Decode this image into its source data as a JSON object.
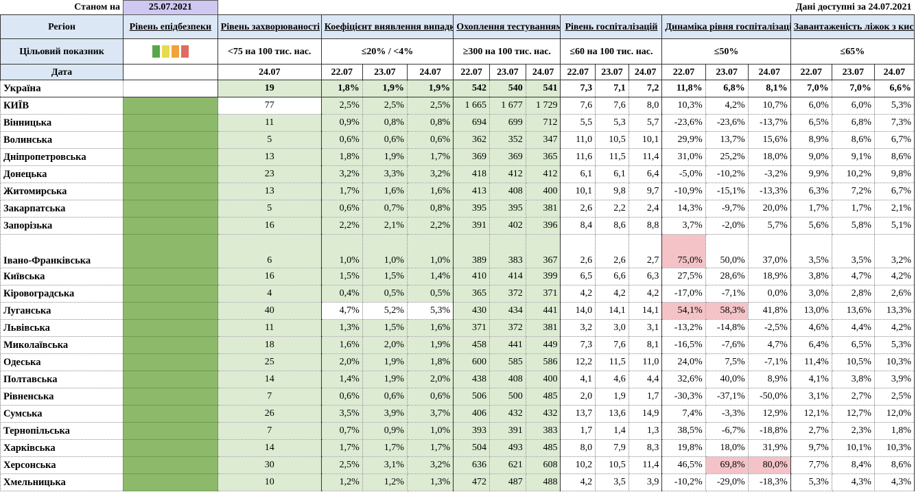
{
  "header": {
    "as_of_label": "Станом на",
    "as_of_date": "25.07.2021",
    "available_label": "Дані доступні за 24.07.2021"
  },
  "columns": {
    "region": "Регіон",
    "epi_level": "Рівень епідбезпеки",
    "incidence": "Рівень захворюваності",
    "detection": "Коефіцієнт виявлення випадків інфікування",
    "testing": "Охоплення тестуванням",
    "hospitalization": "Рівень госпіталізацій",
    "hosp_dynamics": "Динаміка рівня госпіталізацій",
    "oxygen_beds": "Завантаженість ліжок з киснем"
  },
  "target": {
    "label": "Цільовий показник",
    "incidence": "<75 на 100 тис. нас.",
    "detection": "≤20% / <4%",
    "testing": "≥300 на 100 тис. нас.",
    "hospitalization": "≤60 на 100 тис. нас.",
    "hosp_dynamics": "≤50%",
    "oxygen_beds": "≤65%",
    "squares": [
      "#5aa64b",
      "#e6db4f",
      "#f1a23a",
      "#e06a64"
    ]
  },
  "date_row": {
    "label": "Дата",
    "incidence": "24.07",
    "d1": "22.07",
    "d2": "23.07",
    "d3": "24.07"
  },
  "rows": [
    {
      "region": "Україна",
      "inc": "19",
      "det": [
        "1,8%",
        "1,9%",
        "1,9%"
      ],
      "test": [
        "542",
        "540",
        "541"
      ],
      "hosp": [
        "7,3",
        "7,1",
        "7,2"
      ],
      "dyn": [
        "11,8%",
        "6,8%",
        "8,1%"
      ],
      "oxy": [
        "7,0%",
        "7,0%",
        "6,6%"
      ]
    },
    {
      "region": "КИЇВ",
      "inc": "77",
      "det": [
        "2,5%",
        "2,5%",
        "2,5%"
      ],
      "test": [
        "1 665",
        "1 677",
        "1 729"
      ],
      "hosp": [
        "7,6",
        "7,6",
        "8,0"
      ],
      "dyn": [
        "10,3%",
        "4,2%",
        "10,7%"
      ],
      "oxy": [
        "6,0%",
        "6,0%",
        "5,3%"
      ]
    },
    {
      "region": "Вінницька",
      "inc": "11",
      "det": [
        "0,9%",
        "0,8%",
        "0,8%"
      ],
      "test": [
        "694",
        "699",
        "712"
      ],
      "hosp": [
        "5,5",
        "5,3",
        "5,7"
      ],
      "dyn": [
        "-23,6%",
        "-23,6%",
        "-13,7%"
      ],
      "oxy": [
        "6,5%",
        "6,8%",
        "7,3%"
      ]
    },
    {
      "region": "Волинська",
      "inc": "5",
      "det": [
        "0,6%",
        "0,6%",
        "0,6%"
      ],
      "test": [
        "362",
        "352",
        "347"
      ],
      "hosp": [
        "11,0",
        "10,5",
        "10,1"
      ],
      "dyn": [
        "29,9%",
        "13,7%",
        "15,6%"
      ],
      "oxy": [
        "8,9%",
        "8,6%",
        "6,7%"
      ]
    },
    {
      "region": "Дніпропетровська",
      "inc": "13",
      "det": [
        "1,8%",
        "1,9%",
        "1,7%"
      ],
      "test": [
        "369",
        "369",
        "365"
      ],
      "hosp": [
        "11,6",
        "11,5",
        "11,4"
      ],
      "dyn": [
        "31,0%",
        "25,2%",
        "18,0%"
      ],
      "oxy": [
        "9,0%",
        "9,1%",
        "8,6%"
      ]
    },
    {
      "region": "Донецька",
      "inc": "23",
      "det": [
        "3,2%",
        "3,3%",
        "3,2%"
      ],
      "test": [
        "418",
        "412",
        "412"
      ],
      "hosp": [
        "6,1",
        "6,1",
        "6,4"
      ],
      "dyn": [
        "-5,0%",
        "-10,2%",
        "-3,2%"
      ],
      "oxy": [
        "9,9%",
        "10,2%",
        "9,8%"
      ]
    },
    {
      "region": "Житомирська",
      "inc": "13",
      "det": [
        "1,7%",
        "1,6%",
        "1,6%"
      ],
      "test": [
        "413",
        "408",
        "400"
      ],
      "hosp": [
        "10,1",
        "9,8",
        "9,7"
      ],
      "dyn": [
        "-10,9%",
        "-15,1%",
        "-13,3%"
      ],
      "oxy": [
        "6,3%",
        "7,2%",
        "6,7%"
      ]
    },
    {
      "region": "Закарпатська",
      "inc": "5",
      "det": [
        "0,6%",
        "0,7%",
        "0,8%"
      ],
      "test": [
        "395",
        "395",
        "381"
      ],
      "hosp": [
        "2,6",
        "2,2",
        "2,4"
      ],
      "dyn": [
        "14,3%",
        "-9,7%",
        "20,0%"
      ],
      "oxy": [
        "1,7%",
        "1,7%",
        "2,1%"
      ]
    },
    {
      "region": "Запорізька",
      "inc": "16",
      "det": [
        "2,2%",
        "2,1%",
        "2,2%"
      ],
      "test": [
        "391",
        "402",
        "396"
      ],
      "hosp": [
        "8,4",
        "8,6",
        "8,8"
      ],
      "dyn": [
        "3,7%",
        "-2,0%",
        "5,7%"
      ],
      "oxy": [
        "5,6%",
        "5,8%",
        "5,1%"
      ]
    },
    {
      "region": "Івано-Франківська",
      "inc": "6",
      "det": [
        "1,0%",
        "1,0%",
        "1,0%"
      ],
      "test": [
        "389",
        "383",
        "367"
      ],
      "hosp": [
        "2,6",
        "2,6",
        "2,7"
      ],
      "dyn": [
        "75,0%",
        "50,0%",
        "37,0%"
      ],
      "oxy": [
        "3,5%",
        "3,5%",
        "3,2%"
      ]
    },
    {
      "region": "Київська",
      "inc": "16",
      "det": [
        "1,5%",
        "1,5%",
        "1,4%"
      ],
      "test": [
        "410",
        "414",
        "399"
      ],
      "hosp": [
        "6,5",
        "6,6",
        "6,3"
      ],
      "dyn": [
        "27,5%",
        "28,6%",
        "18,9%"
      ],
      "oxy": [
        "3,8%",
        "4,7%",
        "4,2%"
      ]
    },
    {
      "region": "Кіровоградська",
      "inc": "4",
      "det": [
        "0,4%",
        "0,5%",
        "0,5%"
      ],
      "test": [
        "365",
        "372",
        "371"
      ],
      "hosp": [
        "4,2",
        "4,2",
        "4,2"
      ],
      "dyn": [
        "-17,0%",
        "-7,1%",
        "0,0%"
      ],
      "oxy": [
        "3,0%",
        "2,8%",
        "2,6%"
      ]
    },
    {
      "region": "Луганська",
      "inc": "40",
      "det": [
        "4,7%",
        "5,2%",
        "5,3%"
      ],
      "test": [
        "430",
        "434",
        "441"
      ],
      "hosp": [
        "14,0",
        "14,1",
        "14,1"
      ],
      "dyn": [
        "54,1%",
        "58,3%",
        "41,8%"
      ],
      "oxy": [
        "13,0%",
        "13,6%",
        "13,3%"
      ]
    },
    {
      "region": "Львівська",
      "inc": "11",
      "det": [
        "1,3%",
        "1,5%",
        "1,6%"
      ],
      "test": [
        "371",
        "372",
        "381"
      ],
      "hosp": [
        "3,2",
        "3,0",
        "3,1"
      ],
      "dyn": [
        "-13,2%",
        "-14,8%",
        "-2,5%"
      ],
      "oxy": [
        "4,6%",
        "4,4%",
        "4,2%"
      ]
    },
    {
      "region": "Миколаївська",
      "inc": "18",
      "det": [
        "1,6%",
        "2,0%",
        "1,9%"
      ],
      "test": [
        "458",
        "441",
        "449"
      ],
      "hosp": [
        "7,3",
        "7,6",
        "8,1"
      ],
      "dyn": [
        "-16,5%",
        "-7,6%",
        "4,7%"
      ],
      "oxy": [
        "6,4%",
        "6,5%",
        "5,3%"
      ]
    },
    {
      "region": "Одеська",
      "inc": "25",
      "det": [
        "2,0%",
        "1,9%",
        "1,8%"
      ],
      "test": [
        "600",
        "585",
        "586"
      ],
      "hosp": [
        "12,2",
        "11,5",
        "11,0"
      ],
      "dyn": [
        "24,0%",
        "7,5%",
        "-7,1%"
      ],
      "oxy": [
        "11,4%",
        "10,5%",
        "10,3%"
      ]
    },
    {
      "region": "Полтавська",
      "inc": "14",
      "det": [
        "1,4%",
        "1,9%",
        "2,0%"
      ],
      "test": [
        "438",
        "408",
        "400"
      ],
      "hosp": [
        "4,1",
        "4,6",
        "4,4"
      ],
      "dyn": [
        "32,6%",
        "40,0%",
        "8,9%"
      ],
      "oxy": [
        "4,1%",
        "3,8%",
        "3,9%"
      ]
    },
    {
      "region": "Рівненська",
      "inc": "7",
      "det": [
        "0,6%",
        "0,6%",
        "0,6%"
      ],
      "test": [
        "506",
        "500",
        "485"
      ],
      "hosp": [
        "2,0",
        "1,9",
        "1,7"
      ],
      "dyn": [
        "-30,3%",
        "-37,1%",
        "-50,0%"
      ],
      "oxy": [
        "3,1%",
        "2,7%",
        "2,5%"
      ]
    },
    {
      "region": "Сумська",
      "inc": "26",
      "det": [
        "3,5%",
        "3,9%",
        "3,7%"
      ],
      "test": [
        "406",
        "432",
        "432"
      ],
      "hosp": [
        "13,7",
        "13,6",
        "14,9"
      ],
      "dyn": [
        "7,4%",
        "-3,3%",
        "12,9%"
      ],
      "oxy": [
        "12,1%",
        "12,7%",
        "12,0%"
      ]
    },
    {
      "region": "Тернопільська",
      "inc": "7",
      "det": [
        "0,7%",
        "0,9%",
        "1,0%"
      ],
      "test": [
        "393",
        "391",
        "383"
      ],
      "hosp": [
        "1,7",
        "1,4",
        "1,3"
      ],
      "dyn": [
        "38,5%",
        "-6,7%",
        "-18,8%"
      ],
      "oxy": [
        "2,7%",
        "2,3%",
        "1,8%"
      ]
    },
    {
      "region": "Харківська",
      "inc": "14",
      "det": [
        "1,7%",
        "1,7%",
        "1,7%"
      ],
      "test": [
        "504",
        "493",
        "485"
      ],
      "hosp": [
        "8,0",
        "7,9",
        "8,3"
      ],
      "dyn": [
        "19,8%",
        "18,0%",
        "31,9%"
      ],
      "oxy": [
        "9,7%",
        "10,1%",
        "10,3%"
      ]
    },
    {
      "region": "Херсонська",
      "inc": "30",
      "det": [
        "2,5%",
        "3,1%",
        "3,2%"
      ],
      "test": [
        "636",
        "621",
        "608"
      ],
      "hosp": [
        "10,2",
        "10,5",
        "11,4"
      ],
      "dyn": [
        "46,5%",
        "69,8%",
        "80,0%"
      ],
      "oxy": [
        "7,7%",
        "8,4%",
        "8,6%"
      ]
    },
    {
      "region": "Хмельницька",
      "inc": "10",
      "det": [
        "1,2%",
        "1,2%",
        "1,3%"
      ],
      "test": [
        "472",
        "487",
        "488"
      ],
      "hosp": [
        "4,2",
        "3,5",
        "3,9"
      ],
      "dyn": [
        "-10,2%",
        "-29,0%",
        "-18,3%"
      ],
      "oxy": [
        "5,3%",
        "4,3%",
        "4,3%"
      ]
    }
  ]
}
